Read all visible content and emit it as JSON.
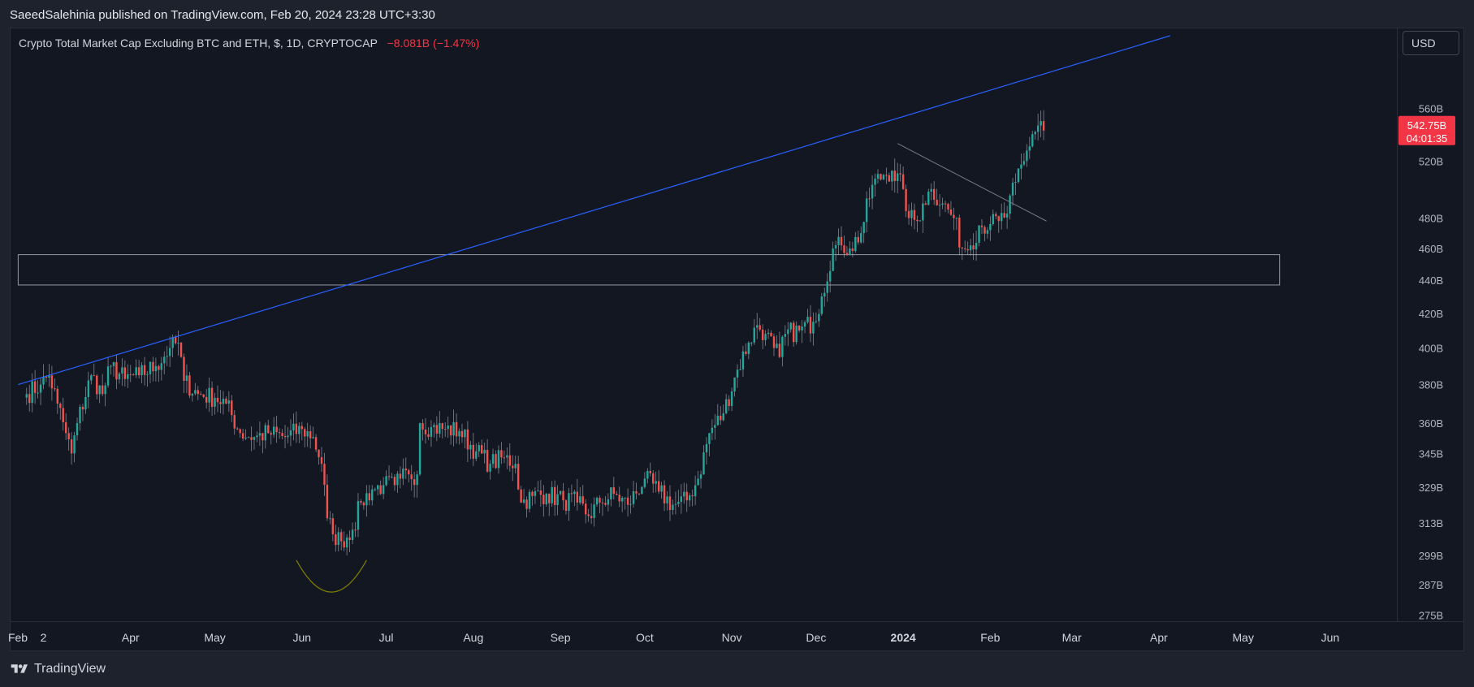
{
  "header": {
    "published_text": "SaeedSalehinia published on TradingView.com, Feb 20, 2024 23:28 UTC+3:30"
  },
  "legend": {
    "symbol_text": "Crypto Total Market Cap Excluding BTC and ETH, $, 1D, CRYPTOCAP",
    "change_text": "−8.081B (−1.47%)"
  },
  "currency_button": {
    "label": "USD"
  },
  "price_badge": {
    "price": "542.75B",
    "countdown": "04:01:35"
  },
  "footer": {
    "brand": "TradingView"
  },
  "colors": {
    "up": "#26a69a",
    "down": "#ef5350",
    "trendline": "#2962ff",
    "downtrend": "#787b86",
    "zone": "#9598a1",
    "arc": "#808000"
  },
  "chart_data": {
    "type": "candlestick",
    "title": "Crypto Total Market Cap Excluding BTC and ETH, $, 1D, CRYPTOCAP",
    "scale": "log",
    "y_ticks": [
      "560B",
      "520B",
      "480B",
      "460B",
      "440B",
      "420B",
      "400B",
      "380B",
      "360B",
      "345B",
      "329B",
      "313B",
      "299B",
      "287B",
      "275B"
    ],
    "x_ticks": [
      "Feb",
      "2",
      "Apr",
      "May",
      "Jun",
      "Jul",
      "Aug",
      "Sep",
      "Oct",
      "Nov",
      "Dec",
      "2024",
      "Feb",
      "Mar",
      "Apr",
      "May",
      "Jun"
    ],
    "last_price": 542.75,
    "close_path": [
      [
        "2023-02-23",
        375
      ],
      [
        "2023-02-28",
        380
      ],
      [
        "2023-03-03",
        385
      ],
      [
        "2023-03-06",
        370
      ],
      [
        "2023-03-09",
        355
      ],
      [
        "2023-03-11",
        345
      ],
      [
        "2023-03-13",
        360
      ],
      [
        "2023-03-18",
        385
      ],
      [
        "2023-03-22",
        375
      ],
      [
        "2023-03-25",
        390
      ],
      [
        "2023-03-30",
        383
      ],
      [
        "2023-04-04",
        385
      ],
      [
        "2023-04-10",
        390
      ],
      [
        "2023-04-15",
        400
      ],
      [
        "2023-04-18",
        403
      ],
      [
        "2023-04-20",
        382
      ],
      [
        "2023-04-25",
        375
      ],
      [
        "2023-05-01",
        373
      ],
      [
        "2023-05-05",
        370
      ],
      [
        "2023-05-10",
        355
      ],
      [
        "2023-05-15",
        353
      ],
      [
        "2023-05-20",
        355
      ],
      [
        "2023-05-26",
        353
      ],
      [
        "2023-06-01",
        357
      ],
      [
        "2023-06-05",
        353
      ],
      [
        "2023-06-08",
        340
      ],
      [
        "2023-06-10",
        315
      ],
      [
        "2023-06-12",
        308
      ],
      [
        "2023-06-15",
        305
      ],
      [
        "2023-06-19",
        310
      ],
      [
        "2023-06-22",
        322
      ],
      [
        "2023-06-26",
        328
      ],
      [
        "2023-06-30",
        330
      ],
      [
        "2023-07-04",
        330
      ],
      [
        "2023-07-06",
        333
      ],
      [
        "2023-07-09",
        335
      ],
      [
        "2023-07-12",
        335
      ],
      [
        "2023-07-13",
        360
      ],
      [
        "2023-07-17",
        358
      ],
      [
        "2023-07-22",
        357
      ],
      [
        "2023-07-27",
        356
      ],
      [
        "2023-08-02",
        346
      ],
      [
        "2023-08-07",
        340
      ],
      [
        "2023-08-12",
        343
      ],
      [
        "2023-08-16",
        340
      ],
      [
        "2023-08-18",
        322
      ],
      [
        "2023-08-22",
        325
      ],
      [
        "2023-08-27",
        326
      ],
      [
        "2023-09-02",
        323
      ],
      [
        "2023-09-07",
        322
      ],
      [
        "2023-09-11",
        316
      ],
      [
        "2023-09-15",
        322
      ],
      [
        "2023-09-20",
        326
      ],
      [
        "2023-09-25",
        321
      ],
      [
        "2023-10-01",
        333
      ],
      [
        "2023-10-06",
        327
      ],
      [
        "2023-10-11",
        321
      ],
      [
        "2023-10-16",
        323
      ],
      [
        "2023-10-20",
        333
      ],
      [
        "2023-10-24",
        355
      ],
      [
        "2023-10-29",
        365
      ],
      [
        "2023-11-03",
        388
      ],
      [
        "2023-11-07",
        403
      ],
      [
        "2023-11-10",
        413
      ],
      [
        "2023-11-13",
        408
      ],
      [
        "2023-11-16",
        400
      ],
      [
        "2023-11-18",
        395
      ],
      [
        "2023-11-20",
        408
      ],
      [
        "2023-11-25",
        410
      ],
      [
        "2023-11-30",
        415
      ],
      [
        "2023-12-03",
        430
      ],
      [
        "2023-12-07",
        460
      ],
      [
        "2023-12-10",
        462
      ],
      [
        "2023-12-13",
        460
      ],
      [
        "2023-12-17",
        470
      ],
      [
        "2023-12-21",
        503
      ],
      [
        "2023-12-25",
        510
      ],
      [
        "2023-12-28",
        513
      ],
      [
        "2024-01-01",
        500
      ],
      [
        "2024-01-03",
        480
      ],
      [
        "2024-01-06",
        478
      ],
      [
        "2024-01-08",
        490
      ],
      [
        "2024-01-11",
        500
      ],
      [
        "2024-01-15",
        490
      ],
      [
        "2024-01-19",
        480
      ],
      [
        "2024-01-22",
        460
      ],
      [
        "2024-01-25",
        462
      ],
      [
        "2024-01-28",
        475
      ],
      [
        "2024-02-01",
        476
      ],
      [
        "2024-02-04",
        478
      ],
      [
        "2024-02-07",
        483
      ],
      [
        "2024-02-10",
        505
      ],
      [
        "2024-02-13",
        520
      ],
      [
        "2024-02-16",
        540
      ],
      [
        "2024-02-19",
        550
      ],
      [
        "2024-02-20",
        542.75
      ]
    ],
    "drawings": {
      "long_trendline": [
        [
          "2023-02-20",
          380
        ],
        [
          "2024-04-05",
          620
        ]
      ],
      "downtrend_line": [
        [
          "2023-12-30",
          533
        ],
        [
          "2024-02-21",
          478
        ]
      ],
      "rectangle_zone": {
        "x": [
          "2023-02-20",
          "2024-05-14"
        ],
        "y": [
          437,
          456
        ]
      },
      "arc": {
        "x": [
          "2023-05-30",
          "2023-06-24"
        ],
        "y_top": 297,
        "y_bottom": 284
      }
    }
  }
}
